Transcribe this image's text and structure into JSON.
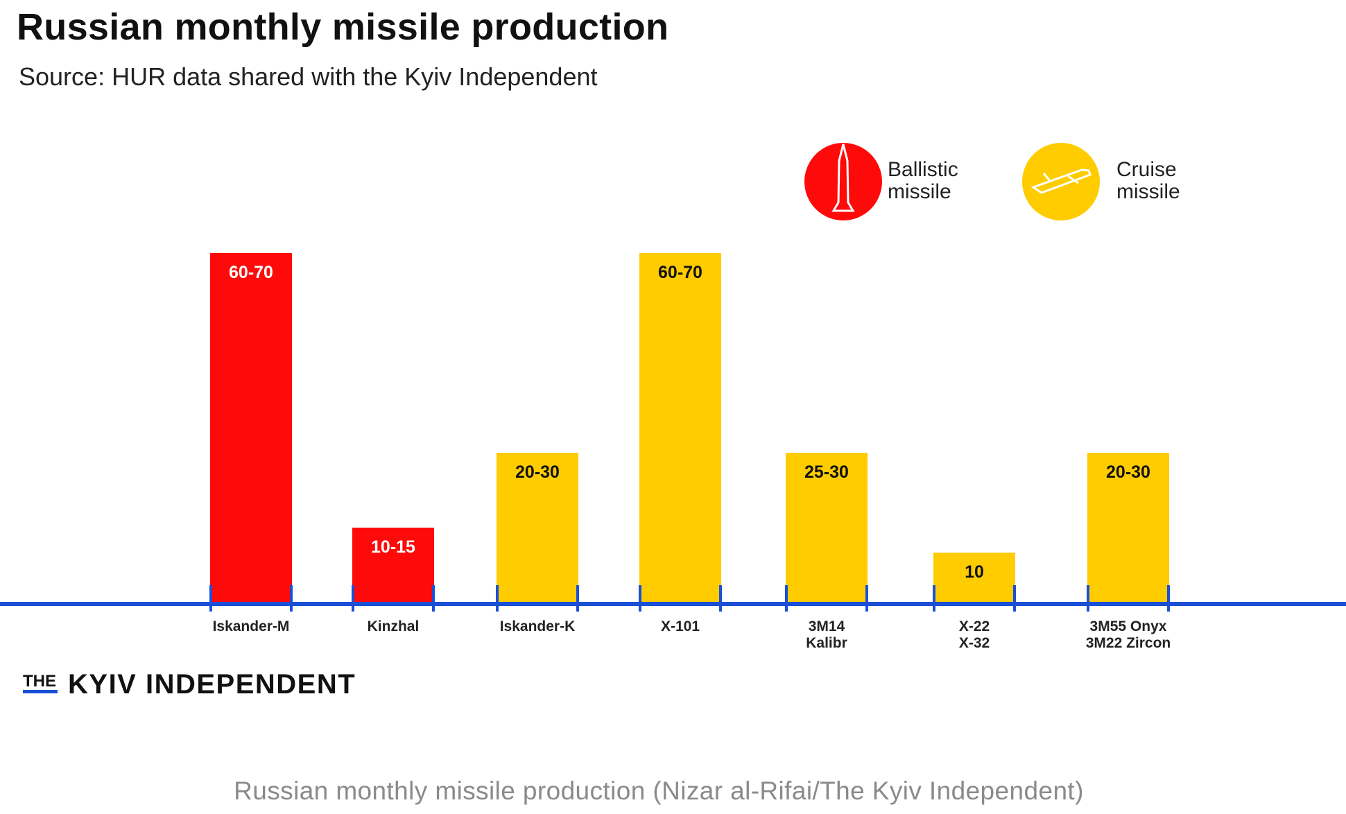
{
  "header": {
    "title": "Russian monthly missile production",
    "subtitle": "Source: HUR data shared with the Kyiv Independent"
  },
  "legend": {
    "ballistic_line1": "Ballistic",
    "ballistic_line2": "missile",
    "cruise_line1": "Cruise",
    "cruise_line2": "missile",
    "ballistic_icon": "ballistic-missile-icon",
    "cruise_icon": "cruise-missile-icon"
  },
  "colors": {
    "ballistic": "#ff0a0a",
    "cruise": "#ffcc00",
    "axis": "#1a4fd6",
    "brand_accent": "#1a4fd6"
  },
  "brand": {
    "the": "THE",
    "name": "KYIV INDEPENDENT"
  },
  "caption": "Russian monthly missile production (Nizar al-Rifai/The Kyiv Independent)",
  "chart_data": {
    "type": "bar",
    "title": "Russian monthly missile production",
    "subtitle": "Source: HUR data shared with the Kyiv Independent",
    "categories": [
      [
        "Iskander-M"
      ],
      [
        "Kinzhal"
      ],
      [
        "Iskander-K"
      ],
      [
        "X-101"
      ],
      [
        "3M14",
        "Kalibr"
      ],
      [
        "X-22",
        "X-32"
      ],
      [
        "3M55 Onyx",
        "3M22 Zircon"
      ]
    ],
    "series": [
      {
        "name": "Ballistic missile",
        "indices": [
          0,
          1
        ]
      },
      {
        "name": "Cruise missile",
        "indices": [
          2,
          3,
          4,
          5,
          6
        ]
      }
    ],
    "value_labels": [
      "60-70",
      "10-15",
      "20-30",
      "60-70",
      "25-30",
      "10",
      "20-30"
    ],
    "ranges": [
      [
        60,
        70
      ],
      [
        10,
        15
      ],
      [
        20,
        30
      ],
      [
        60,
        70
      ],
      [
        25,
        30
      ],
      [
        10,
        10
      ],
      [
        20,
        30
      ]
    ],
    "types": [
      "ballistic",
      "ballistic",
      "cruise",
      "cruise",
      "cruise",
      "cruise",
      "cruise"
    ],
    "legend_position": "top-right",
    "grid": false
  }
}
